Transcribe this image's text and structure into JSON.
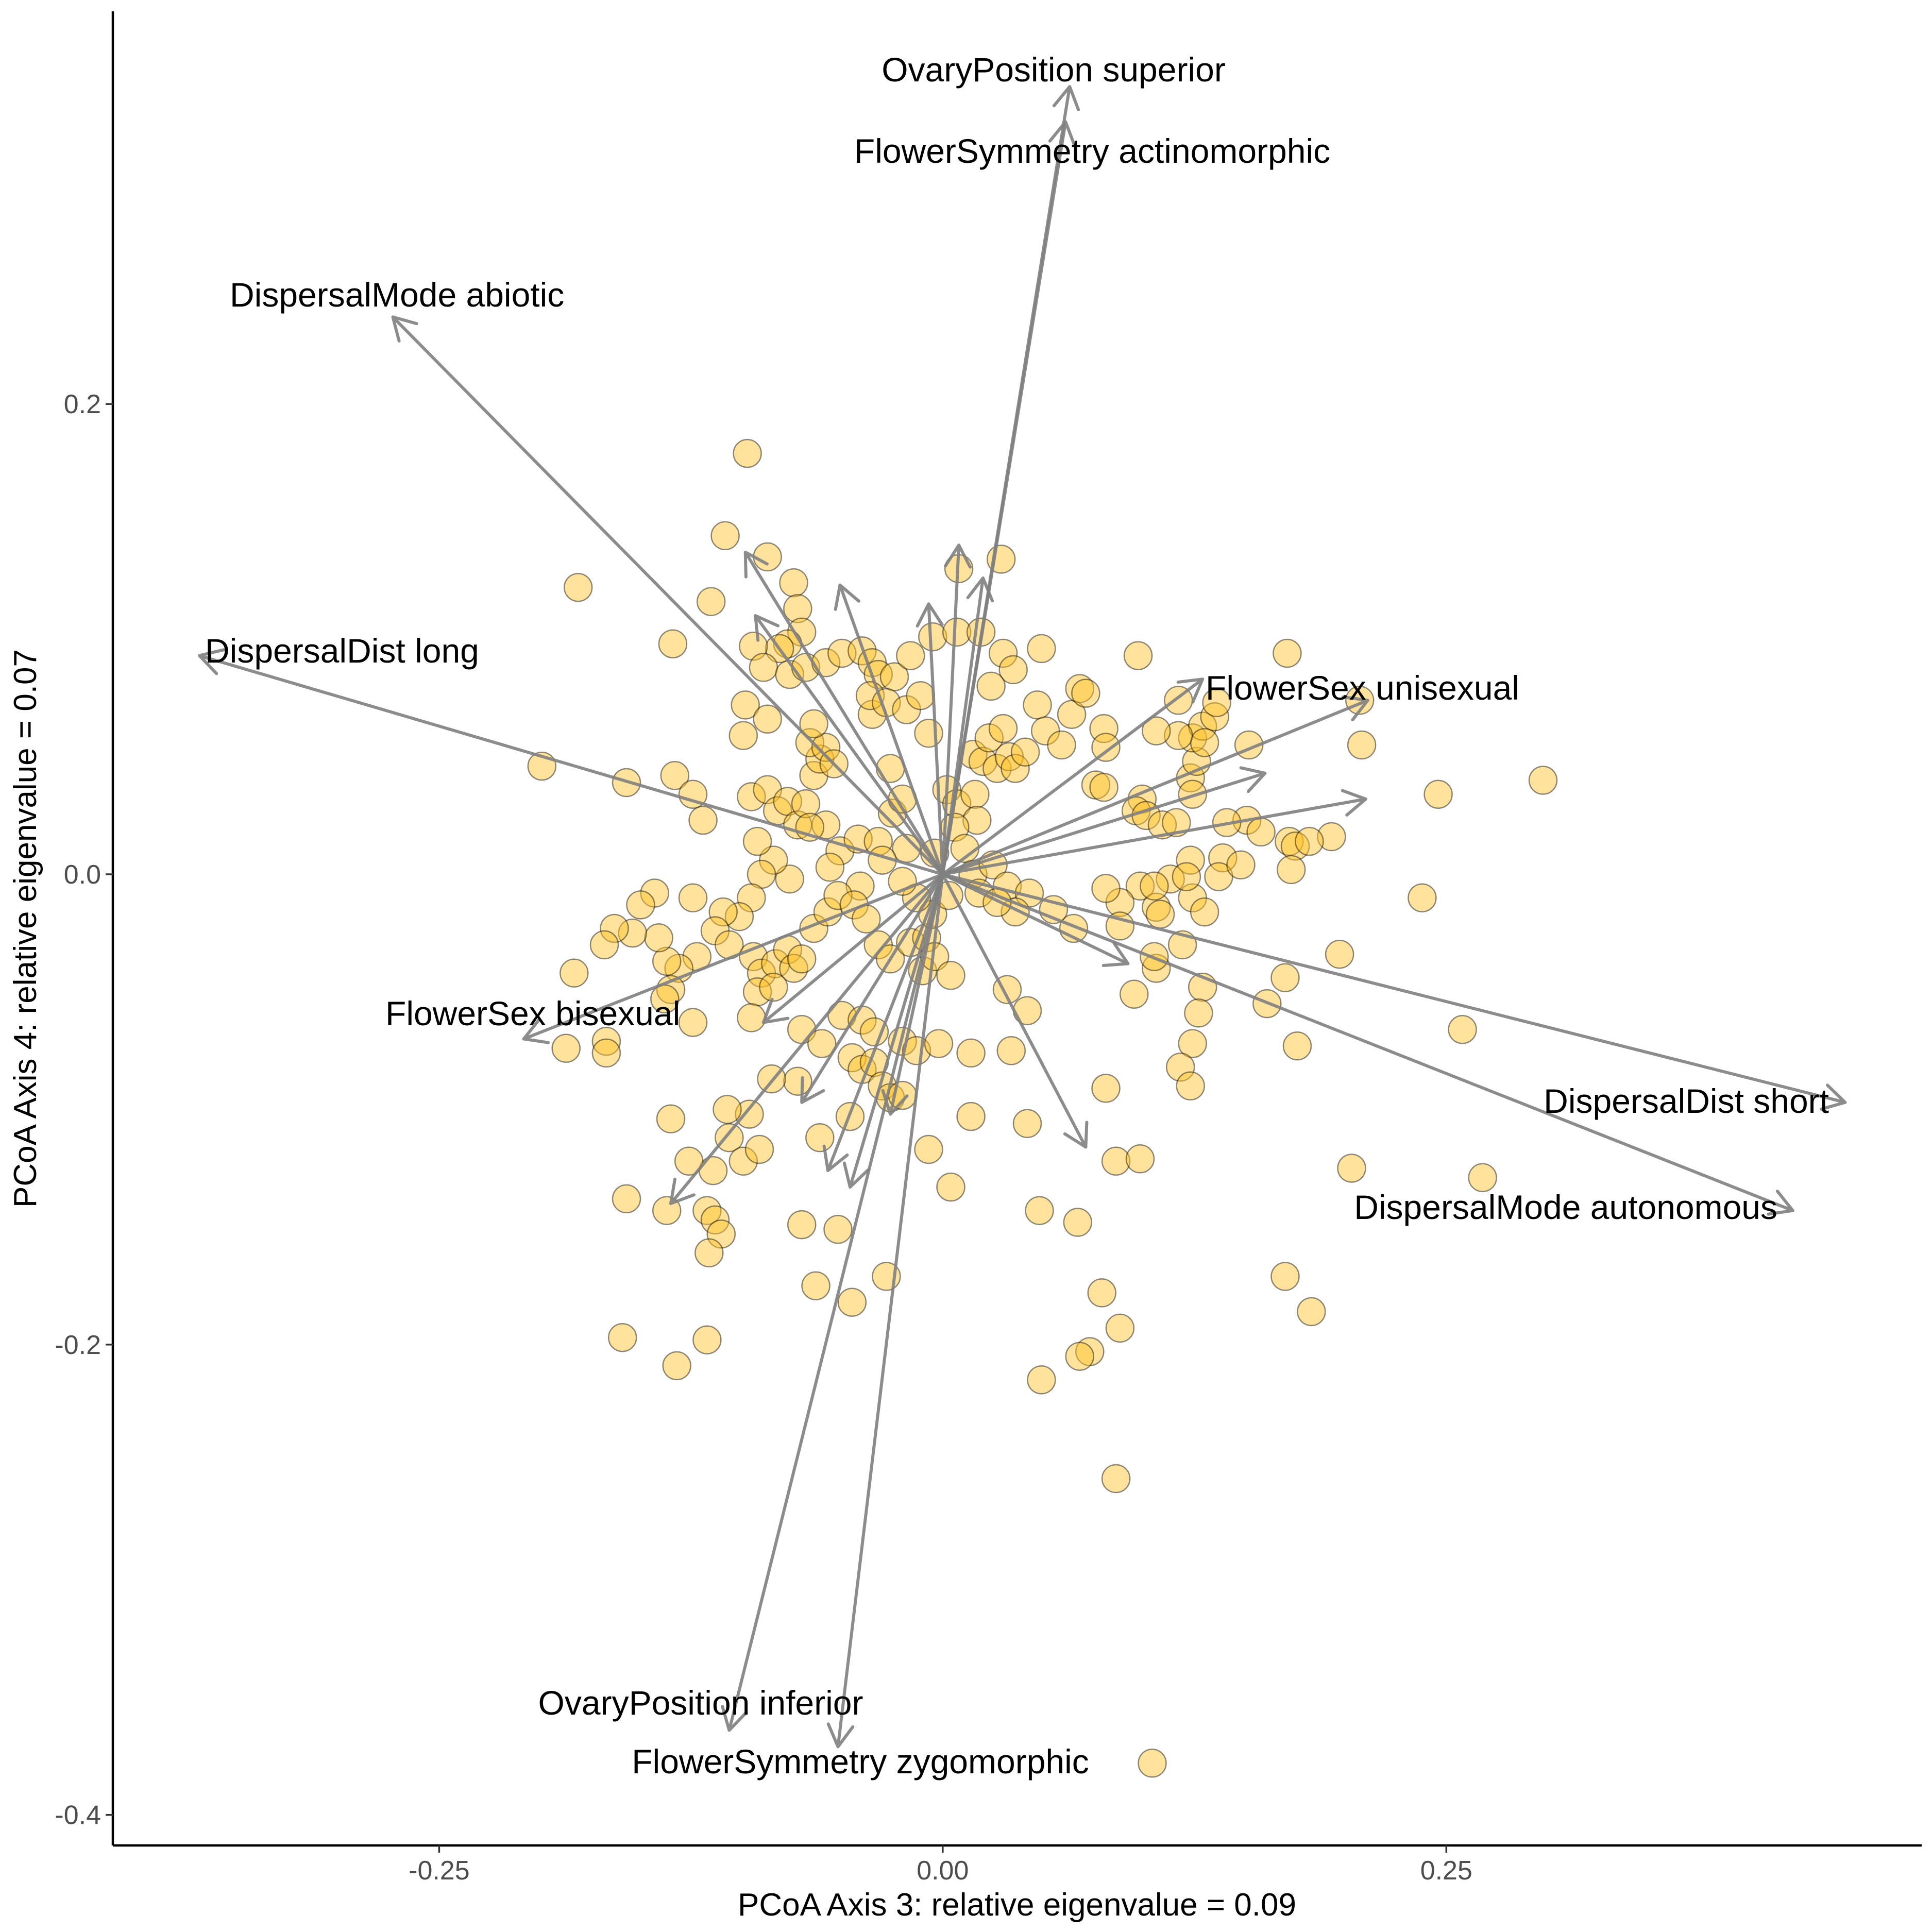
{
  "chart_data": {
    "type": "scatter",
    "xlabel": "PCoA Axis 3: relative eigenvalue = 0.09",
    "ylabel": "PCoA Axis 4: relative eigenvalue = 0.07",
    "xlim": [
      -0.412,
      0.486
    ],
    "ylim": [
      -0.413,
      0.367
    ],
    "xticks": [
      -0.25,
      0.0,
      0.25
    ],
    "xtick_labels": [
      "-0.25",
      "0.00",
      "0.25"
    ],
    "yticks": [
      -0.4,
      -0.2,
      0.0,
      0.2
    ],
    "ytick_labels": [
      "-0.4",
      "-0.2",
      "0.0",
      "0.2"
    ],
    "grid": false,
    "point_color": "#FFC125",
    "arrow_color": "#808080",
    "arrows": [
      {
        "label": "OvaryPosition superior",
        "x": 0.063,
        "y": 0.335
      },
      {
        "label": "FlowerSymmetry actinomorphic",
        "x": 0.061,
        "y": 0.32
      },
      {
        "label": "DispersalMode abiotic",
        "x": -0.273,
        "y": 0.237
      },
      {
        "label": "DispersalDist long",
        "x": -0.369,
        "y": 0.093
      },
      {
        "label": "FlowerSex unisexual",
        "x": 0.129,
        "y": 0.083
      },
      {
        "label": "FlowerSex bisexual",
        "x": -0.208,
        "y": -0.07
      },
      {
        "label": "DispersalDist short",
        "x": 0.448,
        "y": -0.097
      },
      {
        "label": "DispersalMode autonomous",
        "x": 0.422,
        "y": -0.143
      },
      {
        "label": "OvaryPosition inferior",
        "x": -0.106,
        "y": -0.364
      },
      {
        "label": "FlowerSymmetry zygomorphic",
        "x": -0.052,
        "y": -0.371
      },
      {
        "label": "",
        "x": 0.211,
        "y": 0.074
      },
      {
        "label": "",
        "x": 0.16,
        "y": 0.043
      },
      {
        "label": "",
        "x": 0.21,
        "y": 0.032
      },
      {
        "label": "",
        "x": 0.092,
        "y": -0.038
      },
      {
        "label": "",
        "x": 0.071,
        "y": -0.116
      },
      {
        "label": "",
        "x": -0.057,
        "y": -0.126
      },
      {
        "label": "",
        "x": -0.046,
        "y": -0.133
      },
      {
        "label": "",
        "x": -0.026,
        "y": -0.102
      },
      {
        "label": "",
        "x": -0.07,
        "y": -0.097
      },
      {
        "label": "",
        "x": -0.135,
        "y": -0.14
      },
      {
        "label": "",
        "x": -0.089,
        "y": -0.063
      },
      {
        "label": "",
        "x": -0.093,
        "y": 0.11
      },
      {
        "label": "",
        "x": -0.098,
        "y": 0.137
      },
      {
        "label": "",
        "x": -0.051,
        "y": 0.123
      },
      {
        "label": "",
        "x": -0.007,
        "y": 0.115
      },
      {
        "label": "",
        "x": 0.008,
        "y": 0.14
      },
      {
        "label": "",
        "x": 0.02,
        "y": 0.126
      }
    ],
    "points": [
      {
        "x": -0.097,
        "y": 0.179
      },
      {
        "x": -0.108,
        "y": 0.144
      },
      {
        "x": -0.087,
        "y": 0.135
      },
      {
        "x": -0.074,
        "y": 0.124
      },
      {
        "x": -0.072,
        "y": 0.113
      },
      {
        "x": -0.07,
        "y": 0.103
      },
      {
        "x": -0.077,
        "y": 0.098
      },
      {
        "x": -0.081,
        "y": 0.096
      },
      {
        "x": -0.094,
        "y": 0.097
      },
      {
        "x": -0.089,
        "y": 0.088
      },
      {
        "x": -0.076,
        "y": 0.085
      },
      {
        "x": -0.068,
        "y": 0.088
      },
      {
        "x": -0.058,
        "y": 0.09
      },
      {
        "x": -0.05,
        "y": 0.094
      },
      {
        "x": -0.04,
        "y": 0.095
      },
      {
        "x": -0.035,
        "y": 0.09
      },
      {
        "x": -0.032,
        "y": 0.085
      },
      {
        "x": -0.024,
        "y": 0.084
      },
      {
        "x": -0.016,
        "y": 0.093
      },
      {
        "x": -0.005,
        "y": 0.101
      },
      {
        "x": 0.007,
        "y": 0.103
      },
      {
        "x": 0.019,
        "y": 0.103
      },
      {
        "x": 0.03,
        "y": 0.094
      },
      {
        "x": 0.035,
        "y": 0.087
      },
      {
        "x": 0.049,
        "y": 0.096
      },
      {
        "x": 0.008,
        "y": 0.13
      },
      {
        "x": 0.029,
        "y": 0.134
      },
      {
        "x": -0.115,
        "y": 0.116
      },
      {
        "x": -0.134,
        "y": 0.098
      },
      {
        "x": -0.181,
        "y": 0.122
      },
      {
        "x": -0.199,
        "y": 0.046
      },
      {
        "x": -0.157,
        "y": 0.039
      },
      {
        "x": -0.133,
        "y": 0.042
      },
      {
        "x": -0.124,
        "y": 0.034
      },
      {
        "x": -0.119,
        "y": 0.023
      },
      {
        "x": -0.095,
        "y": 0.033
      },
      {
        "x": -0.099,
        "y": 0.059
      },
      {
        "x": -0.098,
        "y": 0.072
      },
      {
        "x": -0.087,
        "y": 0.066
      },
      {
        "x": -0.087,
        "y": 0.036
      },
      {
        "x": -0.082,
        "y": 0.027
      },
      {
        "x": -0.077,
        "y": 0.031
      },
      {
        "x": -0.072,
        "y": 0.021
      },
      {
        "x": -0.068,
        "y": 0.03
      },
      {
        "x": -0.064,
        "y": 0.042
      },
      {
        "x": -0.061,
        "y": 0.049
      },
      {
        "x": -0.066,
        "y": 0.056
      },
      {
        "x": -0.058,
        "y": 0.054
      },
      {
        "x": -0.064,
        "y": 0.064
      },
      {
        "x": -0.054,
        "y": 0.047
      },
      {
        "x": -0.058,
        "y": 0.021
      },
      {
        "x": -0.066,
        "y": 0.02
      },
      {
        "x": -0.051,
        "y": 0.01
      },
      {
        "x": -0.042,
        "y": 0.015
      },
      {
        "x": -0.032,
        "y": 0.014
      },
      {
        "x": -0.025,
        "y": 0.026
      },
      {
        "x": -0.02,
        "y": 0.032
      },
      {
        "x": -0.026,
        "y": 0.045
      },
      {
        "x": -0.035,
        "y": 0.068
      },
      {
        "x": -0.036,
        "y": 0.076
      },
      {
        "x": -0.028,
        "y": 0.073
      },
      {
        "x": -0.018,
        "y": 0.07
      },
      {
        "x": -0.011,
        "y": 0.076
      },
      {
        "x": -0.007,
        "y": 0.06
      },
      {
        "x": 0.002,
        "y": 0.036
      },
      {
        "x": 0.007,
        "y": 0.03
      },
      {
        "x": 0.016,
        "y": 0.034
      },
      {
        "x": 0.017,
        "y": 0.023
      },
      {
        "x": 0.006,
        "y": 0.02
      },
      {
        "x": -0.004,
        "y": 0.009
      },
      {
        "x": -0.018,
        "y": 0.011
      },
      {
        "x": -0.03,
        "y": 0.006
      },
      {
        "x": -0.041,
        "y": -0.005
      },
      {
        "x": -0.056,
        "y": 0.003
      },
      {
        "x": -0.076,
        "y": -0.002
      },
      {
        "x": -0.084,
        "y": 0.006
      },
      {
        "x": -0.09,
        "y": 0.0
      },
      {
        "x": -0.092,
        "y": 0.014
      },
      {
        "x": -0.095,
        "y": -0.01
      },
      {
        "x": -0.101,
        "y": -0.018
      },
      {
        "x": -0.109,
        "y": -0.016
      },
      {
        "x": -0.113,
        "y": -0.024
      },
      {
        "x": -0.122,
        "y": -0.035
      },
      {
        "x": -0.131,
        "y": -0.04
      },
      {
        "x": -0.135,
        "y": -0.049
      },
      {
        "x": -0.137,
        "y": -0.037
      },
      {
        "x": -0.141,
        "y": -0.027
      },
      {
        "x": -0.124,
        "y": -0.01
      },
      {
        "x": -0.143,
        "y": -0.008
      },
      {
        "x": -0.15,
        "y": -0.013
      },
      {
        "x": -0.154,
        "y": -0.025
      },
      {
        "x": -0.163,
        "y": -0.023
      },
      {
        "x": -0.168,
        "y": -0.03
      },
      {
        "x": -0.183,
        "y": -0.042
      },
      {
        "x": -0.167,
        "y": -0.071
      },
      {
        "x": -0.167,
        "y": -0.076
      },
      {
        "x": -0.187,
        "y": -0.074
      },
      {
        "x": -0.138,
        "y": -0.053
      },
      {
        "x": -0.124,
        "y": -0.063
      },
      {
        "x": -0.106,
        "y": -0.03
      },
      {
        "x": -0.094,
        "y": -0.035
      },
      {
        "x": -0.09,
        "y": -0.042
      },
      {
        "x": -0.083,
        "y": -0.038
      },
      {
        "x": -0.077,
        "y": -0.032
      },
      {
        "x": -0.074,
        "y": -0.04
      },
      {
        "x": -0.07,
        "y": -0.036
      },
      {
        "x": -0.064,
        "y": -0.023
      },
      {
        "x": -0.057,
        "y": -0.016
      },
      {
        "x": -0.052,
        "y": -0.009
      },
      {
        "x": -0.044,
        "y": -0.013
      },
      {
        "x": -0.038,
        "y": -0.019
      },
      {
        "x": -0.032,
        "y": -0.03
      },
      {
        "x": -0.026,
        "y": -0.036
      },
      {
        "x": -0.016,
        "y": -0.029
      },
      {
        "x": -0.008,
        "y": -0.027
      },
      {
        "x": -0.005,
        "y": -0.017
      },
      {
        "x": -0.013,
        "y": -0.01
      },
      {
        "x": -0.02,
        "y": -0.003
      },
      {
        "x": -0.01,
        "y": -0.041
      },
      {
        "x": -0.004,
        "y": -0.035
      },
      {
        "x": 0.004,
        "y": -0.043
      },
      {
        "x": -0.092,
        "y": -0.05
      },
      {
        "x": -0.095,
        "y": -0.061
      },
      {
        "x": -0.084,
        "y": -0.048
      },
      {
        "x": -0.07,
        "y": -0.066
      },
      {
        "x": -0.06,
        "y": -0.072
      },
      {
        "x": -0.05,
        "y": -0.06
      },
      {
        "x": -0.04,
        "y": -0.062
      },
      {
        "x": -0.034,
        "y": -0.067
      },
      {
        "x": -0.045,
        "y": -0.078
      },
      {
        "x": -0.04,
        "y": -0.083
      },
      {
        "x": -0.034,
        "y": -0.08
      },
      {
        "x": -0.02,
        "y": -0.071
      },
      {
        "x": -0.013,
        "y": -0.075
      },
      {
        "x": -0.002,
        "y": -0.072
      },
      {
        "x": 0.014,
        "y": -0.076
      },
      {
        "x": 0.034,
        "y": -0.075
      },
      {
        "x": 0.042,
        "y": -0.058
      },
      {
        "x": 0.032,
        "y": -0.049
      },
      {
        "x": -0.03,
        "y": -0.09
      },
      {
        "x": -0.026,
        "y": -0.095
      },
      {
        "x": -0.02,
        "y": -0.094
      },
      {
        "x": -0.046,
        "y": -0.103
      },
      {
        "x": -0.061,
        "y": -0.112
      },
      {
        "x": -0.072,
        "y": -0.088
      },
      {
        "x": -0.085,
        "y": -0.087
      },
      {
        "x": -0.096,
        "y": -0.102
      },
      {
        "x": -0.106,
        "y": -0.112
      },
      {
        "x": -0.114,
        "y": -0.126
      },
      {
        "x": -0.126,
        "y": -0.122
      },
      {
        "x": -0.099,
        "y": -0.122
      },
      {
        "x": -0.091,
        "y": -0.117
      },
      {
        "x": -0.107,
        "y": -0.1
      },
      {
        "x": -0.135,
        "y": -0.104
      },
      {
        "x": -0.157,
        "y": -0.138
      },
      {
        "x": -0.137,
        "y": -0.143
      },
      {
        "x": -0.117,
        "y": -0.143
      },
      {
        "x": -0.113,
        "y": -0.147
      },
      {
        "x": -0.11,
        "y": -0.153
      },
      {
        "x": -0.116,
        "y": -0.161
      },
      {
        "x": -0.07,
        "y": -0.149
      },
      {
        "x": -0.052,
        "y": -0.151
      },
      {
        "x": -0.063,
        "y": -0.175
      },
      {
        "x": -0.045,
        "y": -0.182
      },
      {
        "x": -0.028,
        "y": -0.171
      },
      {
        "x": 0.004,
        "y": -0.133
      },
      {
        "x": -0.007,
        "y": -0.117
      },
      {
        "x": 0.014,
        "y": -0.103
      },
      {
        "x": 0.042,
        "y": -0.106
      },
      {
        "x": 0.048,
        "y": -0.143
      },
      {
        "x": 0.067,
        "y": -0.148
      },
      {
        "x": 0.081,
        "y": -0.091
      },
      {
        "x": 0.086,
        "y": -0.122
      },
      {
        "x": 0.098,
        "y": -0.121
      },
      {
        "x": 0.079,
        "y": -0.178
      },
      {
        "x": 0.088,
        "y": -0.193
      },
      {
        "x": 0.073,
        "y": -0.203
      },
      {
        "x": 0.068,
        "y": -0.205
      },
      {
        "x": 0.049,
        "y": -0.215
      },
      {
        "x": 0.086,
        "y": -0.257
      },
      {
        "x": -0.159,
        "y": -0.197
      },
      {
        "x": -0.117,
        "y": -0.198
      },
      {
        "x": -0.132,
        "y": -0.209
      },
      {
        "x": 0.104,
        "y": -0.378
      },
      {
        "x": 0.011,
        "y": 0.011
      },
      {
        "x": 0.015,
        "y": 0.0
      },
      {
        "x": 0.025,
        "y": 0.004
      },
      {
        "x": 0.032,
        "y": -0.005
      },
      {
        "x": 0.018,
        "y": -0.008
      },
      {
        "x": 0.003,
        "y": -0.009
      },
      {
        "x": 0.015,
        "y": 0.051
      },
      {
        "x": 0.02,
        "y": 0.048
      },
      {
        "x": 0.023,
        "y": 0.058
      },
      {
        "x": 0.027,
        "y": 0.045
      },
      {
        "x": 0.033,
        "y": 0.05
      },
      {
        "x": 0.03,
        "y": 0.062
      },
      {
        "x": 0.036,
        "y": 0.045
      },
      {
        "x": 0.041,
        "y": 0.052
      },
      {
        "x": 0.024,
        "y": 0.08
      },
      {
        "x": 0.047,
        "y": 0.072
      },
      {
        "x": 0.051,
        "y": 0.061
      },
      {
        "x": 0.059,
        "y": 0.055
      },
      {
        "x": 0.064,
        "y": 0.068
      },
      {
        "x": 0.068,
        "y": 0.079
      },
      {
        "x": 0.071,
        "y": 0.077
      },
      {
        "x": 0.08,
        "y": 0.062
      },
      {
        "x": 0.081,
        "y": 0.054
      },
      {
        "x": 0.076,
        "y": 0.038
      },
      {
        "x": 0.08,
        "y": 0.037
      },
      {
        "x": 0.099,
        "y": 0.032
      },
      {
        "x": 0.096,
        "y": 0.027
      },
      {
        "x": 0.101,
        "y": 0.025
      },
      {
        "x": 0.109,
        "y": 0.021
      },
      {
        "x": 0.116,
        "y": 0.022
      },
      {
        "x": 0.123,
        "y": 0.041
      },
      {
        "x": 0.124,
        "y": 0.034
      },
      {
        "x": 0.126,
        "y": 0.048
      },
      {
        "x": 0.124,
        "y": 0.058
      },
      {
        "x": 0.129,
        "y": 0.063
      },
      {
        "x": 0.135,
        "y": 0.067
      },
      {
        "x": 0.136,
        "y": 0.073
      },
      {
        "x": 0.13,
        "y": 0.056
      },
      {
        "x": 0.117,
        "y": 0.059
      },
      {
        "x": 0.106,
        "y": 0.061
      },
      {
        "x": 0.097,
        "y": 0.093
      },
      {
        "x": 0.117,
        "y": 0.074
      },
      {
        "x": 0.152,
        "y": 0.055
      },
      {
        "x": 0.151,
        "y": 0.023
      },
      {
        "x": 0.141,
        "y": 0.022
      },
      {
        "x": 0.139,
        "y": 0.007
      },
      {
        "x": 0.158,
        "y": 0.018
      },
      {
        "x": 0.172,
        "y": 0.014
      },
      {
        "x": 0.175,
        "y": 0.012
      },
      {
        "x": 0.173,
        "y": 0.002
      },
      {
        "x": 0.193,
        "y": 0.016
      },
      {
        "x": 0.182,
        "y": 0.014
      },
      {
        "x": 0.207,
        "y": 0.074
      },
      {
        "x": 0.208,
        "y": 0.055
      },
      {
        "x": 0.171,
        "y": 0.094
      },
      {
        "x": 0.246,
        "y": 0.034
      },
      {
        "x": 0.298,
        "y": 0.04
      },
      {
        "x": 0.238,
        "y": -0.01
      },
      {
        "x": 0.197,
        "y": -0.034
      },
      {
        "x": 0.258,
        "y": -0.066
      },
      {
        "x": 0.203,
        "y": -0.125
      },
      {
        "x": 0.268,
        "y": -0.129
      },
      {
        "x": 0.17,
        "y": -0.044
      },
      {
        "x": 0.161,
        "y": -0.055
      },
      {
        "x": 0.176,
        "y": -0.073
      },
      {
        "x": 0.17,
        "y": -0.171
      },
      {
        "x": 0.183,
        "y": -0.186
      },
      {
        "x": 0.129,
        "y": -0.048
      },
      {
        "x": 0.127,
        "y": -0.059
      },
      {
        "x": 0.124,
        "y": -0.072
      },
      {
        "x": 0.118,
        "y": -0.082
      },
      {
        "x": 0.123,
        "y": -0.09
      },
      {
        "x": 0.119,
        "y": -0.03
      },
      {
        "x": 0.106,
        "y": -0.04
      },
      {
        "x": 0.105,
        "y": -0.035
      },
      {
        "x": 0.095,
        "y": -0.051
      },
      {
        "x": 0.098,
        "y": -0.005
      },
      {
        "x": 0.088,
        "y": -0.012
      },
      {
        "x": 0.088,
        "y": -0.022
      },
      {
        "x": 0.106,
        "y": -0.014
      },
      {
        "x": 0.113,
        "y": -0.002
      },
      {
        "x": 0.124,
        "y": -0.01
      },
      {
        "x": 0.13,
        "y": -0.016
      },
      {
        "x": 0.137,
        "y": -0.001
      },
      {
        "x": 0.148,
        "y": 0.004
      },
      {
        "x": 0.123,
        "y": 0.006
      },
      {
        "x": 0.121,
        "y": -0.001
      },
      {
        "x": 0.105,
        "y": -0.005
      },
      {
        "x": 0.108,
        "y": -0.017
      },
      {
        "x": 0.065,
        "y": -0.023
      },
      {
        "x": 0.055,
        "y": -0.015
      },
      {
        "x": 0.043,
        "y": -0.008
      },
      {
        "x": 0.036,
        "y": -0.016
      },
      {
        "x": 0.027,
        "y": -0.012
      },
      {
        "x": 0.081,
        "y": -0.006
      }
    ]
  }
}
